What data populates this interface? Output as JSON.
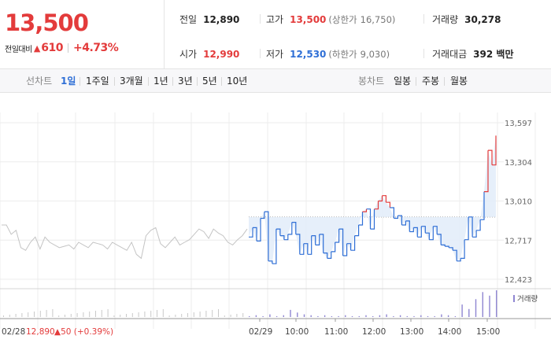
{
  "header": {
    "price": "13,500",
    "change_label": "전일대비",
    "change_arrow": "▲",
    "change_value": "610",
    "change_pct": "+4.73%",
    "stats": {
      "prev_close_label": "전일",
      "prev_close": "12,890",
      "high_label": "고가",
      "high": "13,500",
      "upper_limit_label": "(상한가",
      "upper_limit": "16,750)",
      "volume_label": "거래량",
      "volume": "30,278",
      "open_label": "시가",
      "open": "12,990",
      "low_label": "저가",
      "low": "12,530",
      "lower_limit_label": "(하한가",
      "lower_limit": "9,030)",
      "turnover_label": "거래대금",
      "turnover": "392 백만"
    }
  },
  "toolbar": {
    "line_chart_label": "선차트",
    "periods": [
      "1일",
      "1주일",
      "3개월",
      "1년",
      "3년",
      "5년",
      "10년"
    ],
    "active_period": "1일",
    "candle_chart_label": "봉차트",
    "candles": [
      "일봉",
      "주봉",
      "월봉"
    ]
  },
  "colors": {
    "up": "#e33b3b",
    "down": "#2f6fd6",
    "prev_day_line": "#c4c4c4",
    "fill": "#e3edfa",
    "volume_bar": "#8f86d2"
  },
  "chart_data": {
    "type": "line",
    "y_ticks": [
      "13,597",
      "13,304",
      "13,010",
      "12,717",
      "12,423"
    ],
    "ylim": [
      12423,
      13597
    ],
    "baseline": 12890,
    "x_ticks": [
      "02/29",
      "10:00",
      "11:00",
      "12:00",
      "13:00",
      "14:00",
      "15:00"
    ],
    "prev_day_label": "02/28",
    "prev_day_close": "12,890",
    "prev_day_change": "▲50 (+0.39%)",
    "volume_legend": "거래량",
    "series": [
      {
        "values": [
          12740,
          12810,
          12710,
          12880,
          12930,
          12560,
          12540,
          12800,
          12750,
          12720,
          12760,
          12850,
          12760,
          12610,
          12690,
          12610,
          12750,
          12680,
          12760,
          12620,
          12580,
          12630,
          12700,
          12800,
          12600,
          12690,
          12640,
          12750,
          12830,
          12930,
          12950,
          12800,
          12950,
          13010,
          13050,
          13000,
          12960,
          12880,
          12900,
          12830,
          12860,
          12780,
          12810,
          12740,
          12820,
          12770,
          12720,
          12820,
          12760,
          12680,
          12670,
          12660,
          12640,
          12560,
          12580,
          12720,
          12890,
          12740,
          12790,
          12870,
          13080,
          13390,
          13280,
          13500
        ]
      }
    ],
    "volume_values": [
      1,
      2,
      1,
      3,
      1,
      2,
      8,
      5,
      3,
      2,
      1,
      2,
      1,
      1,
      2,
      1,
      1,
      2,
      1,
      2,
      3,
      1,
      2,
      1,
      1,
      2,
      1,
      1,
      3,
      2,
      1,
      14,
      9,
      20,
      28,
      24,
      30
    ]
  }
}
